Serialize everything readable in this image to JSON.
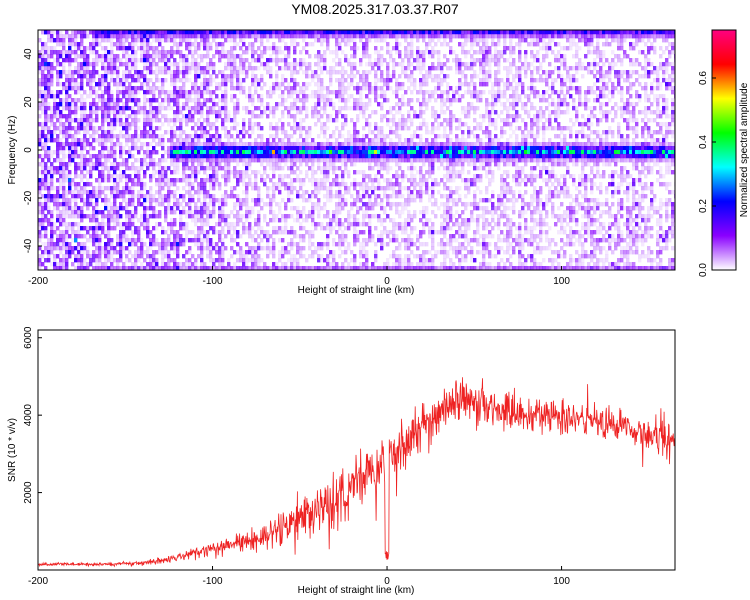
{
  "title": "YM08.2025.317.03.37.R07",
  "chart_data": [
    {
      "type": "heatmap",
      "xlabel": "Height of straight line (km)",
      "ylabel": "Frequency (Hz)",
      "xlim": [
        -200,
        165
      ],
      "ylim": [
        -50,
        50
      ],
      "x_ticks": [
        "-200",
        "-100",
        "0",
        "100"
      ],
      "x_tick_values": [
        -200,
        -100,
        0,
        100
      ],
      "y_ticks": [
        "-40",
        "-20",
        "0",
        "20",
        "40"
      ],
      "y_tick_values": [
        -40,
        -20,
        0,
        20,
        40
      ],
      "colorbar": {
        "label": "Normalized spectral amplitude",
        "range": [
          0,
          0.75
        ],
        "ticks": [
          "0.0",
          "0.2",
          "0.4",
          "0.6"
        ],
        "tick_values": [
          0.0,
          0.2,
          0.4,
          0.6
        ],
        "colors": [
          "#ffffff",
          "#8a00ff",
          "#0000ff",
          "#00ffff",
          "#00ff00",
          "#ffff00",
          "#ff0000",
          "#ff0080"
        ]
      },
      "features": {
        "signal_line_frequency_hz": 0,
        "signal_line_start_km": -125,
        "edge_bands_hz": [
          -50,
          50
        ],
        "peak_amplitude": 0.7
      },
      "grid": false
    },
    {
      "type": "line",
      "xlabel": "Height of straight line (km)",
      "ylabel": "SNR (10 * v/v)",
      "xlim": [
        -200,
        165
      ],
      "ylim": [
        0,
        6200
      ],
      "x_ticks": [
        "-200",
        "-100",
        "0",
        "100"
      ],
      "x_tick_values": [
        -200,
        -100,
        0,
        100
      ],
      "y_ticks": [
        "2000",
        "4000",
        "6000"
      ],
      "y_tick_values": [
        2000,
        4000,
        6000
      ],
      "color": "#ee2222",
      "series": [
        {
          "x": [
            -200,
            -180,
            -160,
            -140,
            -130,
            -120,
            -110,
            -100,
            -90,
            -80,
            -70,
            -60,
            -50,
            -40,
            -30,
            -20,
            -10,
            0,
            10,
            20,
            30,
            40,
            50,
            60,
            70,
            80,
            90,
            100,
            110,
            120,
            130,
            140,
            150,
            160,
            165
          ],
          "y": [
            150,
            150,
            150,
            170,
            220,
            320,
            450,
            550,
            650,
            760,
            850,
            1050,
            1300,
            1550,
            1800,
            2100,
            2450,
            2700,
            3250,
            3800,
            4050,
            4350,
            4300,
            4150,
            4100,
            4050,
            4000,
            3950,
            3900,
            3850,
            3800,
            3650,
            3500,
            3400,
            3350
          ],
          "noise": [
            50,
            50,
            60,
            80,
            100,
            130,
            170,
            210,
            250,
            320,
            400,
            500,
            650,
            750,
            850,
            900,
            1000,
            1100,
            900,
            800,
            750,
            700,
            650,
            620,
            600,
            580,
            560,
            540,
            520,
            500,
            500,
            560,
            620,
            640,
            650
          ]
        }
      ],
      "grid": false
    }
  ]
}
